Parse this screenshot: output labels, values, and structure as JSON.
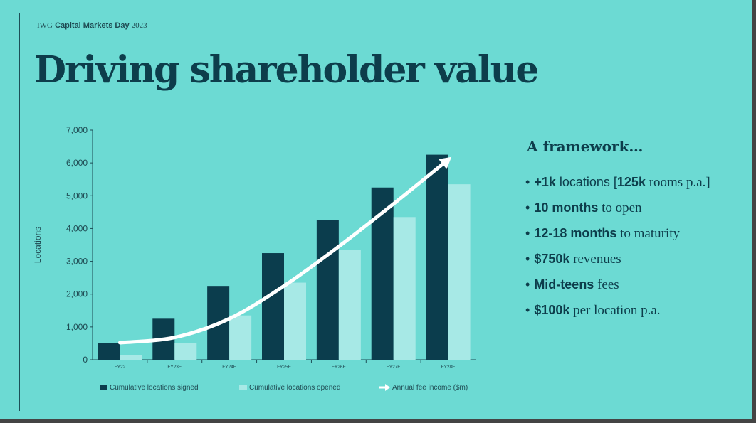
{
  "header": {
    "brand": "IWG",
    "event": "Capital Markets Day",
    "year": "2023"
  },
  "title": "Driving shareholder value",
  "framework": {
    "title": "A framework…",
    "bullets": [
      {
        "bold": "+1k",
        "mid": " locations [",
        "bold2": "125k",
        "rest": " rooms p.a.]"
      },
      {
        "bold": "10 months",
        "rest": " to open"
      },
      {
        "bold": "12-18 months",
        "rest": " to maturity"
      },
      {
        "bold": "$750k",
        "rest": " revenues"
      },
      {
        "bold": "Mid-teens",
        "rest": " fees"
      },
      {
        "bold": "$100k",
        "rest": " per location p.a."
      }
    ]
  },
  "colors": {
    "background": "#6cdad3",
    "signed": "#0b3d4d",
    "opened": "#a7e9e6",
    "line": "#ffffff",
    "text": "#0d3d4b"
  },
  "chart_data": {
    "type": "bar",
    "categories": [
      "FY22",
      "FY23E",
      "FY24E",
      "FY25E",
      "FY26E",
      "FY27E",
      "FY28E"
    ],
    "series": [
      {
        "name": "Cumulative locations signed",
        "type": "bar",
        "values": [
          500,
          1250,
          2250,
          3250,
          4250,
          5250,
          6250
        ]
      },
      {
        "name": "Cumulative locations opened",
        "type": "bar",
        "values": [
          150,
          500,
          1350,
          2350,
          3350,
          4350,
          5350
        ]
      },
      {
        "name": "Annual fee income ($m)",
        "type": "line",
        "values": [
          520,
          680,
          1250,
          2250,
          3450,
          4750,
          6100
        ]
      }
    ],
    "ylabel": "Locations",
    "xlabel": "",
    "ylim": [
      0,
      7000
    ],
    "yticks": [
      "0",
      "1,000",
      "2,000",
      "3,000",
      "4,000",
      "5,000",
      "6,000",
      "7,000"
    ],
    "grid": false,
    "legend": "bottom"
  }
}
